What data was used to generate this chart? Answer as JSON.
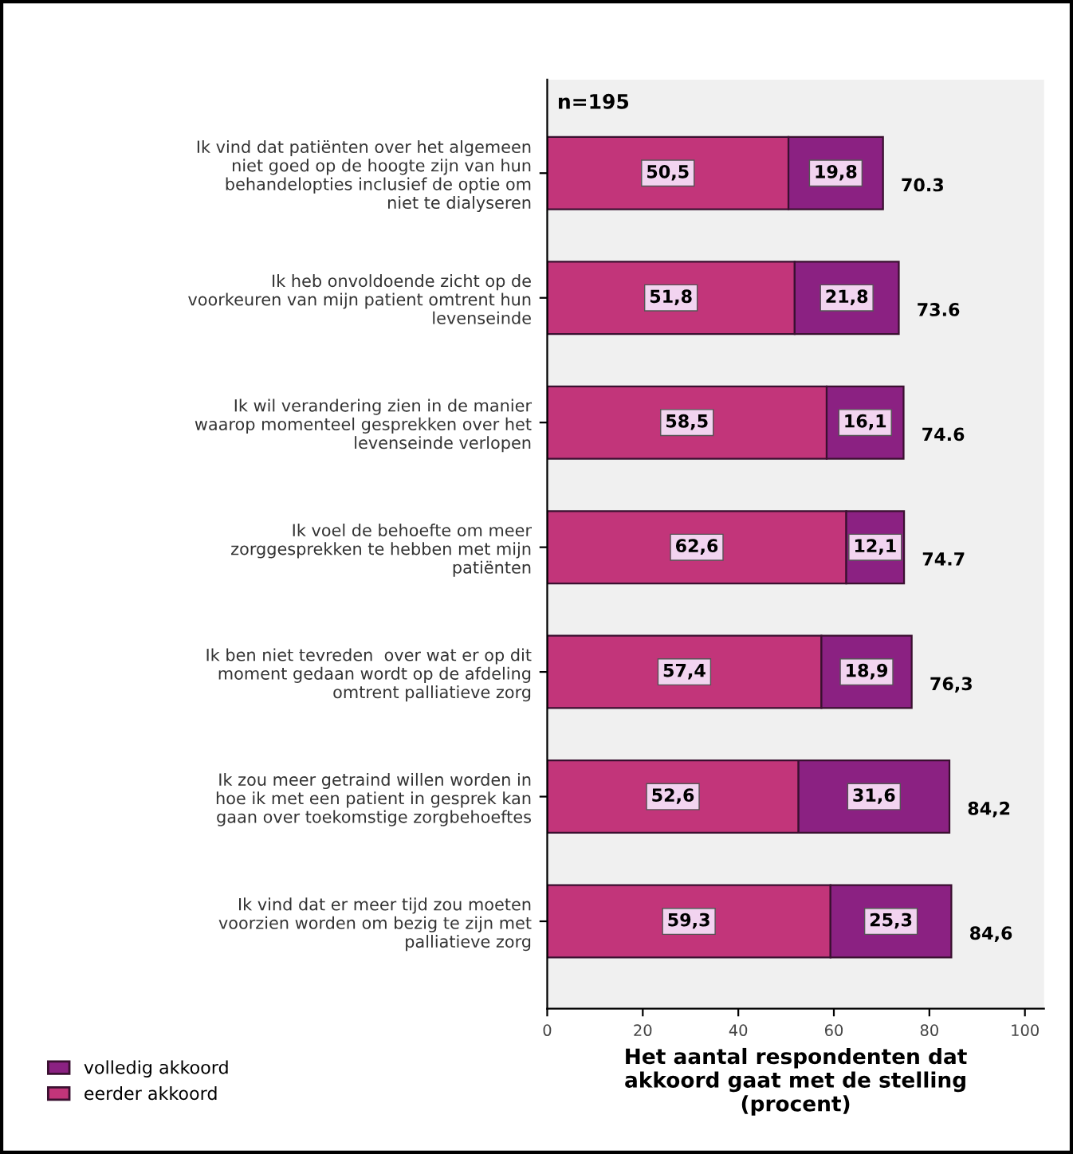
{
  "chart_data": {
    "type": "bar",
    "orientation": "horizontal",
    "stacked": true,
    "xlabel": "Het aantal respondenten dat\nakkoord gaat met de stelling\n(procent)",
    "categories": [
      "Ik vind dat patiënten over het algemeen\nniet goed op de hoogte zijn van hun\nbehandelopties inclusief de optie om\nniet te dialyseren",
      "Ik heb onvoldoende zicht op de\nvoorkeuren van mijn patient omtrent hun\nlevenseinde",
      "Ik wil verandering zien in de manier\nwaarop momenteel gesprekken over het\nlevenseinde verlopen",
      "Ik voel de behoefte om meer\nzorggesprekken te hebben met mijn\npatiënten",
      "Ik ben niet tevreden  over wat er op dit\nmoment gedaan wordt op de afdeling\nomtrent palliatieve zorg",
      "Ik zou meer getraind willen worden in\nhoe ik met een patient in gesprek kan\ngaan over toekomstige zorgbehoeftes",
      "Ik vind dat er meer tijd zou moeten\nvoorzien worden om bezig te zijn met\npalliatieve zorg"
    ],
    "series": [
      {
        "name": "eerder akkoord",
        "color": "#c2357a",
        "values": [
          50.5,
          51.8,
          58.5,
          62.6,
          57.4,
          52.6,
          59.3
        ],
        "value_labels": [
          "50,5",
          "51,8",
          "58,5",
          "62,6",
          "57,4",
          "52,6",
          "59,3"
        ]
      },
      {
        "name": "volledig akkoord",
        "color": "#8b2182",
        "values": [
          19.8,
          21.8,
          16.1,
          12.1,
          18.9,
          31.6,
          25.3
        ],
        "value_labels": [
          "19,8",
          "21,8",
          "16,1",
          "12,1",
          "18,9",
          "31,6",
          "25,3"
        ]
      }
    ],
    "totals": [
      "70.3",
      "73.6",
      "74.6",
      "74.7",
      "76,3",
      "84,2",
      "84,6"
    ],
    "annotations": [
      "n=195"
    ],
    "xlim": [
      0,
      104
    ],
    "xticks": [
      0,
      20,
      40,
      60,
      80,
      100
    ],
    "grid": false,
    "legend": "bottom left"
  }
}
